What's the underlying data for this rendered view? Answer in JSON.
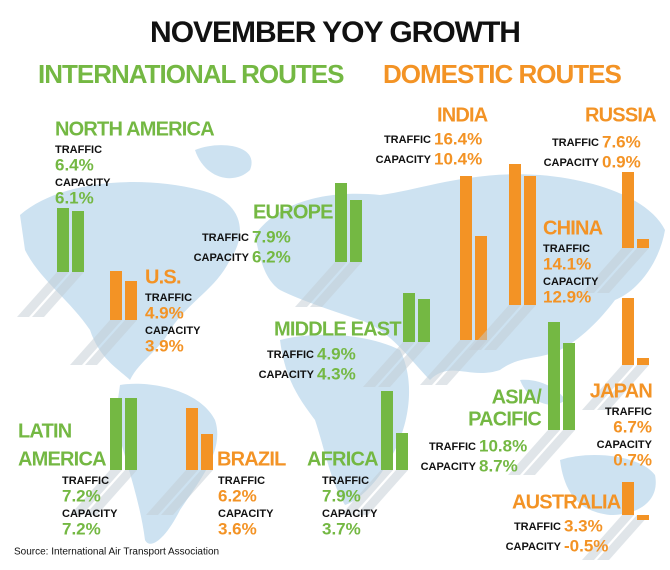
{
  "chart_data": {
    "type": "bar",
    "title": "NOVEMBER YOY GROWTH",
    "source": "Source: International Air Transport Association",
    "measures": [
      "TRAFFIC",
      "CAPACITY"
    ],
    "series": [
      {
        "name": "INTERNATIONAL ROUTES",
        "color": "#74b843",
        "regions": [
          {
            "name": [
              "NORTH AMERICA"
            ],
            "values": [
              6.4,
              6.1
            ],
            "value_labels": [
              "6.4%",
              "6.1%"
            ]
          },
          {
            "name": [
              "EUROPE"
            ],
            "values": [
              7.9,
              6.2
            ],
            "value_labels": [
              "7.9%",
              "6.2%"
            ]
          },
          {
            "name": [
              "MIDDLE EAST"
            ],
            "values": [
              4.9,
              4.3
            ],
            "value_labels": [
              "4.9%",
              "4.3%"
            ]
          },
          {
            "name": [
              "LATIN",
              "AMERICA"
            ],
            "values": [
              7.2,
              7.2
            ],
            "value_labels": [
              "7.2%",
              "7.2%"
            ]
          },
          {
            "name": [
              "AFRICA"
            ],
            "values": [
              7.9,
              3.7
            ],
            "value_labels": [
              "7.9%",
              "3.7%"
            ]
          },
          {
            "name": [
              "ASIA/",
              "PACIFIC"
            ],
            "values": [
              10.8,
              8.7
            ],
            "value_labels": [
              "10.8%",
              "8.7%"
            ]
          }
        ]
      },
      {
        "name": "DOMESTIC ROUTES",
        "color": "#f39325",
        "regions": [
          {
            "name": [
              "INDIA"
            ],
            "values": [
              16.4,
              10.4
            ],
            "value_labels": [
              "16.4%",
              "10.4%"
            ]
          },
          {
            "name": [
              "RUSSIA"
            ],
            "values": [
              7.6,
              0.9
            ],
            "value_labels": [
              "7.6%",
              "0.9%"
            ]
          },
          {
            "name": [
              "CHINA"
            ],
            "values": [
              14.1,
              12.9
            ],
            "value_labels": [
              "14.1%",
              "12.9%"
            ]
          },
          {
            "name": [
              "U.S."
            ],
            "values": [
              4.9,
              3.9
            ],
            "value_labels": [
              "4.9%",
              "3.9%"
            ]
          },
          {
            "name": [
              "JAPAN"
            ],
            "values": [
              6.7,
              0.7
            ],
            "value_labels": [
              "6.7%",
              "0.7%"
            ]
          },
          {
            "name": [
              "BRAZIL"
            ],
            "values": [
              6.2,
              3.6
            ],
            "value_labels": [
              "6.2%",
              "3.6%"
            ]
          },
          {
            "name": [
              "AUSTRALIA"
            ],
            "values": [
              3.3,
              -0.5
            ],
            "value_labels": [
              "3.3%",
              "-0.5%"
            ]
          }
        ]
      }
    ]
  }
}
